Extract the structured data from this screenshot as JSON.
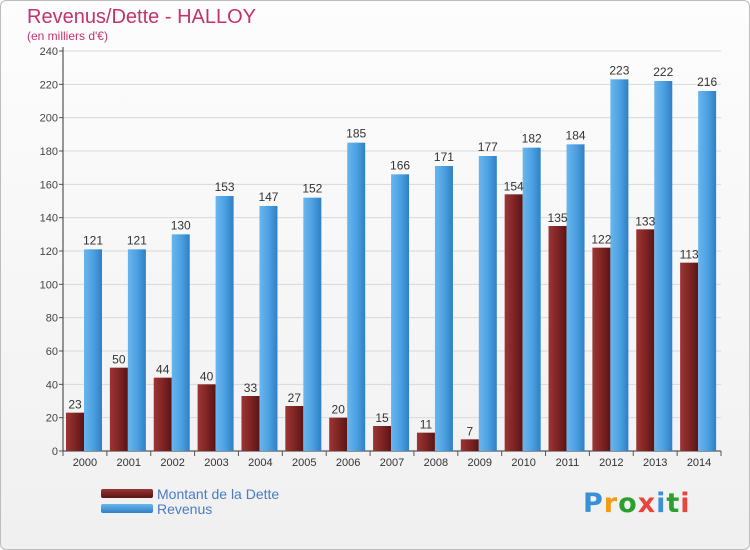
{
  "header": {
    "title": "Revenus/Dette - HALLOY",
    "subtitle": "(en milliers d'€)"
  },
  "colors": {
    "debt": "#7d2323",
    "revenue": "#4a9fe0",
    "title": "#c4326e"
  },
  "chart_data": {
    "type": "bar",
    "title": "Revenus/Dette - HALLOY",
    "ylabel": "(en milliers d'€)",
    "categories": [
      "2000",
      "2001",
      "2002",
      "2003",
      "2004",
      "2005",
      "2006",
      "2007",
      "2008",
      "2009",
      "2010",
      "2011",
      "2012",
      "2013",
      "2014"
    ],
    "series": [
      {
        "name": "Montant de la Dette",
        "values": [
          23,
          50,
          44,
          40,
          33,
          27,
          20,
          15,
          11,
          7,
          154,
          135,
          122,
          133,
          113
        ]
      },
      {
        "name": "Revenus",
        "values": [
          121,
          121,
          130,
          153,
          147,
          152,
          185,
          166,
          171,
          177,
          182,
          184,
          223,
          222,
          216
        ]
      }
    ],
    "ylim": [
      0,
      240
    ],
    "yticks": [
      0,
      20,
      40,
      60,
      80,
      100,
      120,
      140,
      160,
      180,
      200,
      220,
      240
    ],
    "grid": true,
    "legend": "bottom-left"
  },
  "legend": {
    "items": [
      {
        "label": "Montant de la Dette"
      },
      {
        "label": "Revenus"
      }
    ]
  },
  "logo": {
    "letters": [
      "P",
      "r",
      "o",
      "x",
      "i",
      "t",
      "i"
    ],
    "colors": [
      "#3a8fd6",
      "#f39c12",
      "#2ca02c",
      "#e8453c",
      "#3a8fd6",
      "#2ca02c",
      "#e8453c"
    ]
  }
}
